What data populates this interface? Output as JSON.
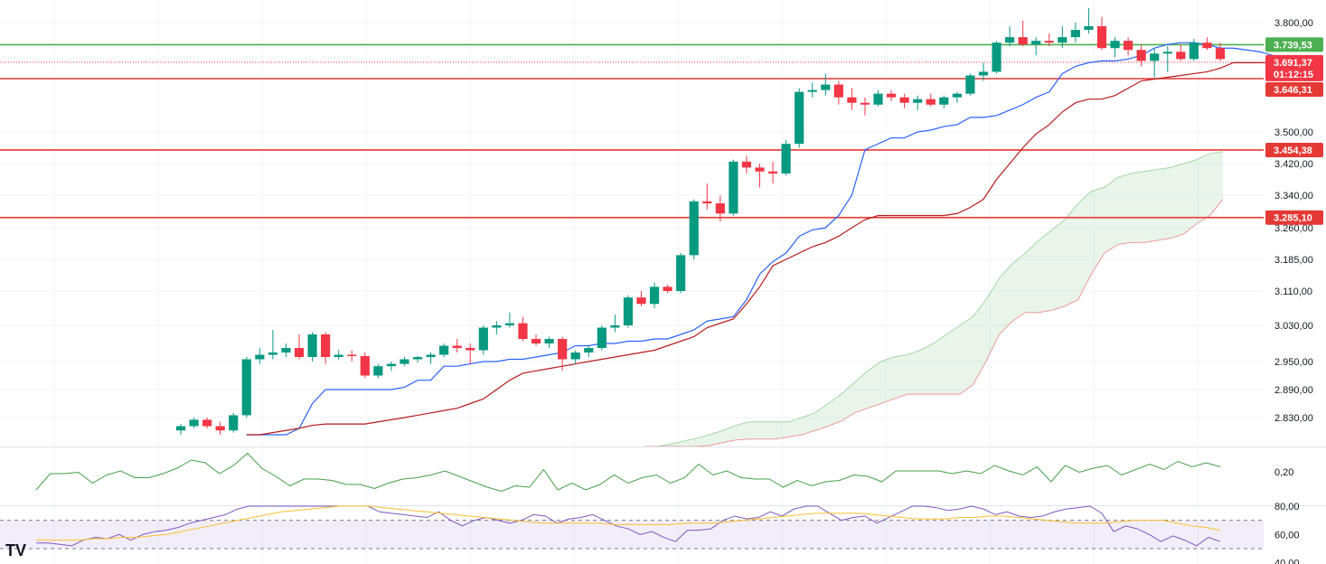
{
  "chart_data": {
    "type": "candlestick",
    "price_axis": {
      "ticks": [
        "3.800,00",
        "3.500,00",
        "3.420,00",
        "3.340,00",
        "3.260,00",
        "3.185,00",
        "3.110,00",
        "3.030,00",
        "2.950,00",
        "2.890,00",
        "2.830,00"
      ],
      "tick_values": [
        3800,
        3500,
        3420,
        3340,
        3260,
        3185,
        3110,
        3030,
        2950,
        2890,
        2830
      ]
    },
    "horizontal_levels": [
      {
        "value": 3739.53,
        "label": "3.739,53",
        "color": "#4caf50"
      },
      {
        "value": 3646.31,
        "label": "3.646,31",
        "color": "#e53935"
      },
      {
        "value": 3454.38,
        "label": "3.454,38",
        "color": "#e53935"
      },
      {
        "value": 3285.1,
        "label": "3.285,10",
        "color": "#e53935"
      }
    ],
    "last_price": {
      "value": 3691.37,
      "label": "3.691,37",
      "countdown": "01:12:15",
      "color": "#f23645"
    },
    "candles": [
      [
        2800,
        2815,
        2790,
        2810
      ],
      [
        2810,
        2830,
        2805,
        2825
      ],
      [
        2825,
        2830,
        2805,
        2810
      ],
      [
        2810,
        2820,
        2790,
        2800
      ],
      [
        2800,
        2840,
        2795,
        2835
      ],
      [
        2835,
        2960,
        2830,
        2955
      ],
      [
        2955,
        2980,
        2945,
        2965
      ],
      [
        2965,
        3020,
        2955,
        2970
      ],
      [
        2970,
        2990,
        2960,
        2980
      ],
      [
        2980,
        3010,
        2955,
        2960
      ],
      [
        2960,
        3015,
        2950,
        3010
      ],
      [
        3010,
        3015,
        2945,
        2960
      ],
      [
        2960,
        2975,
        2955,
        2965
      ],
      [
        2965,
        2975,
        2950,
        2962
      ],
      [
        2962,
        2970,
        2915,
        2920
      ],
      [
        2920,
        2945,
        2915,
        2940
      ],
      [
        2940,
        2950,
        2930,
        2945
      ],
      [
        2945,
        2960,
        2940,
        2955
      ],
      [
        2955,
        2962,
        2948,
        2960
      ],
      [
        2960,
        2970,
        2945,
        2965
      ],
      [
        2965,
        2990,
        2960,
        2985
      ],
      [
        2985,
        3000,
        2970,
        2980
      ],
      [
        2980,
        2990,
        2945,
        2975
      ],
      [
        2975,
        3030,
        2965,
        3025
      ],
      [
        3025,
        3040,
        3010,
        3030
      ],
      [
        3030,
        3060,
        3025,
        3035
      ],
      [
        3035,
        3050,
        2995,
        3000
      ],
      [
        3000,
        3010,
        2985,
        2990
      ],
      [
        2990,
        3005,
        2980,
        3000
      ],
      [
        3000,
        3005,
        2930,
        2955
      ],
      [
        2955,
        2975,
        2945,
        2970
      ],
      [
        2970,
        2985,
        2960,
        2980
      ],
      [
        2980,
        3030,
        2975,
        3025
      ],
      [
        3025,
        3055,
        3015,
        3030
      ],
      [
        3030,
        3100,
        3025,
        3095
      ],
      [
        3095,
        3110,
        3075,
        3080
      ],
      [
        3080,
        3130,
        3070,
        3120
      ],
      [
        3120,
        3125,
        3105,
        3110
      ],
      [
        3110,
        3200,
        3105,
        3195
      ],
      [
        3195,
        3330,
        3185,
        3325
      ],
      [
        3325,
        3370,
        3305,
        3320
      ],
      [
        3320,
        3340,
        3275,
        3295
      ],
      [
        3295,
        3430,
        3290,
        3425
      ],
      [
        3425,
        3440,
        3395,
        3410
      ],
      [
        3410,
        3420,
        3360,
        3400
      ],
      [
        3400,
        3425,
        3370,
        3395
      ],
      [
        3395,
        3480,
        3390,
        3470
      ],
      [
        3470,
        3620,
        3460,
        3610
      ],
      [
        3610,
        3635,
        3595,
        3615
      ],
      [
        3615,
        3660,
        3600,
        3630
      ],
      [
        3630,
        3640,
        3575,
        3595
      ],
      [
        3595,
        3620,
        3560,
        3580
      ],
      [
        3580,
        3595,
        3545,
        3575
      ],
      [
        3575,
        3615,
        3570,
        3605
      ],
      [
        3605,
        3615,
        3585,
        3595
      ],
      [
        3595,
        3605,
        3565,
        3580
      ],
      [
        3580,
        3600,
        3560,
        3590
      ],
      [
        3590,
        3605,
        3570,
        3575
      ],
      [
        3575,
        3600,
        3565,
        3595
      ],
      [
        3595,
        3610,
        3580,
        3605
      ],
      [
        3605,
        3660,
        3600,
        3655
      ],
      [
        3655,
        3690,
        3640,
        3665
      ],
      [
        3665,
        3750,
        3660,
        3745
      ],
      [
        3745,
        3790,
        3735,
        3760
      ],
      [
        3760,
        3805,
        3735,
        3740
      ],
      [
        3740,
        3760,
        3710,
        3750
      ],
      [
        3750,
        3770,
        3735,
        3745
      ],
      [
        3745,
        3790,
        3730,
        3760
      ],
      [
        3760,
        3800,
        3745,
        3780
      ],
      [
        3780,
        3840,
        3770,
        3790
      ],
      [
        3790,
        3815,
        3725,
        3730
      ],
      [
        3730,
        3760,
        3705,
        3750
      ],
      [
        3750,
        3760,
        3710,
        3725
      ],
      [
        3725,
        3740,
        3680,
        3695
      ],
      [
        3695,
        3730,
        3650,
        3715
      ],
      [
        3715,
        3735,
        3665,
        3720
      ],
      [
        3720,
        3740,
        3695,
        3700
      ],
      [
        3700,
        3755,
        3695,
        3745
      ],
      [
        3745,
        3760,
        3725,
        3730
      ],
      [
        3730,
        3745,
        3695,
        3700
      ]
    ],
    "candle_colors": {
      "up": "#089981",
      "down": "#f23645"
    },
    "indicators": {
      "conversion_line": [
        2790,
        2790,
        2790,
        2790,
        2805,
        2860,
        2890,
        2890,
        2890,
        2890,
        2890,
        2890,
        2895,
        2910,
        2910,
        2940,
        2940,
        2945,
        2950,
        2950,
        2955,
        2955,
        2960,
        2965,
        2970,
        2985,
        2985,
        2990,
        2990,
        2995,
        2995,
        3000,
        3000,
        3010,
        3020,
        3040,
        3045,
        3050,
        3090,
        3150,
        3180,
        3200,
        3240,
        3255,
        3260,
        3290,
        3340,
        3455,
        3470,
        3485,
        3485,
        3500,
        3505,
        3515,
        3520,
        3540,
        3540,
        3545,
        3560,
        3575,
        3595,
        3610,
        3660,
        3680,
        3690,
        3695,
        3695,
        3700,
        3710,
        3730,
        3740,
        3745,
        3745,
        3740,
        3730,
        3730,
        3725,
        3720,
        3710,
        3695
      ],
      "base_line": [
        2790,
        2790,
        2795,
        2800,
        2805,
        2812,
        2815,
        2815,
        2815,
        2815,
        2820,
        2825,
        2830,
        2835,
        2840,
        2845,
        2850,
        2860,
        2870,
        2890,
        2910,
        2925,
        2930,
        2935,
        2940,
        2945,
        2950,
        2955,
        2960,
        2965,
        2970,
        2975,
        2985,
        2995,
        3005,
        3025,
        3035,
        3045,
        3080,
        3120,
        3170,
        3185,
        3200,
        3215,
        3225,
        3240,
        3260,
        3280,
        3290,
        3290,
        3290,
        3290,
        3290,
        3290,
        3295,
        3310,
        3330,
        3380,
        3420,
        3460,
        3495,
        3520,
        3555,
        3580,
        3590,
        3590,
        3600,
        3620,
        3640,
        3645,
        3650,
        3655,
        3660,
        3665,
        3675,
        3690,
        3690,
        3690,
        3690,
        3700
      ],
      "cloud_start_index": 35,
      "span_a": [
        2755,
        2760,
        2768,
        2775,
        2782,
        2790,
        2800,
        2812,
        2820,
        2820,
        2820,
        2820,
        2830,
        2840,
        2860,
        2880,
        2905,
        2930,
        2950,
        2960,
        2965,
        2975,
        2990,
        3010,
        3030,
        3050,
        3090,
        3140,
        3175,
        3200,
        3230,
        3255,
        3280,
        3320,
        3350,
        3360,
        3385,
        3395,
        3400,
        3405,
        3410,
        3420,
        3430,
        3445,
        3450
      ],
      "span_b": [
        2750,
        2752,
        2755,
        2758,
        2760,
        2765,
        2772,
        2778,
        2780,
        2780,
        2780,
        2785,
        2790,
        2800,
        2810,
        2822,
        2840,
        2850,
        2860,
        2870,
        2880,
        2880,
        2880,
        2880,
        2880,
        2900,
        2950,
        3010,
        3040,
        3060,
        3060,
        3065,
        3075,
        3090,
        3150,
        3200,
        3220,
        3225,
        3225,
        3230,
        3235,
        3245,
        3270,
        3290,
        3330
      ]
    },
    "sub_panels": [
      {
        "name": "",
        "tick": "0,20",
        "color": "#43a047",
        "values": [
          0.1,
          0.22,
          0.22,
          0.23,
          0.15,
          0.21,
          0.24,
          0.19,
          0.19,
          0.22,
          0.26,
          0.32,
          0.3,
          0.22,
          0.28,
          0.37,
          0.26,
          0.2,
          0.13,
          0.18,
          0.18,
          0.17,
          0.14,
          0.14,
          0.11,
          0.15,
          0.18,
          0.19,
          0.21,
          0.24,
          0.2,
          0.16,
          0.12,
          0.09,
          0.13,
          0.12,
          0.25,
          0.1,
          0.15,
          0.1,
          0.14,
          0.21,
          0.15,
          0.19,
          0.21,
          0.15,
          0.19,
          0.29,
          0.21,
          0.24,
          0.19,
          0.18,
          0.18,
          0.12,
          0.17,
          0.13,
          0.16,
          0.17,
          0.21,
          0.2,
          0.16,
          0.24,
          0.24,
          0.24,
          0.24,
          0.22,
          0.24,
          0.22,
          0.28,
          0.24,
          0.21,
          0.27,
          0.16,
          0.28,
          0.23,
          0.26,
          0.28,
          0.21,
          0.25,
          0.29,
          0.25,
          0.31,
          0.27,
          0.3,
          0.27
        ]
      },
      {
        "name": "",
        "ticks": [
          "80,00",
          "60,00",
          "40,00"
        ],
        "band": [
          70,
          50
        ],
        "rsi": [
          54,
          54,
          53,
          52,
          56,
          58,
          57,
          60,
          56,
          60,
          62,
          63,
          65,
          68,
          70,
          72,
          74,
          78,
          80,
          80,
          80,
          80,
          80,
          80,
          80,
          80,
          80,
          80,
          80,
          76,
          75,
          74,
          73,
          72,
          76,
          70,
          66,
          70,
          72,
          70,
          68,
          70,
          74,
          73,
          68,
          71,
          72,
          74,
          70,
          66,
          64,
          60,
          62,
          58,
          55,
          63,
          63,
          64,
          70,
          73,
          71,
          72,
          76,
          73,
          78,
          80,
          80,
          75,
          70,
          72,
          73,
          68,
          72,
          76,
          80,
          80,
          79,
          77,
          78,
          80,
          78,
          74,
          76,
          73,
          72,
          73,
          76,
          78,
          79,
          80,
          75,
          62,
          66,
          64,
          60,
          55,
          59,
          56,
          52,
          58,
          55
        ],
        "rsi_color": "#7e57c2",
        "ma_color": "#fbc02d",
        "rsi_ma": [
          56,
          56,
          56,
          56,
          57,
          57,
          58,
          58,
          59,
          60,
          62,
          64,
          66,
          68,
          70,
          72,
          74,
          76,
          77,
          78,
          79,
          80,
          80,
          80,
          79,
          78,
          77,
          76,
          75,
          74,
          73,
          72,
          71,
          70,
          69,
          68,
          68,
          68,
          68,
          68,
          67,
          67,
          67,
          67,
          67,
          68,
          68,
          68,
          69,
          70,
          71,
          72,
          73,
          74,
          75,
          75,
          75,
          75,
          74,
          73,
          72,
          71,
          71,
          71,
          72,
          72,
          73,
          73,
          72,
          71,
          70,
          69,
          68,
          68,
          68,
          69,
          70,
          70,
          70,
          68,
          66,
          65,
          63
        ]
      }
    ]
  }
}
